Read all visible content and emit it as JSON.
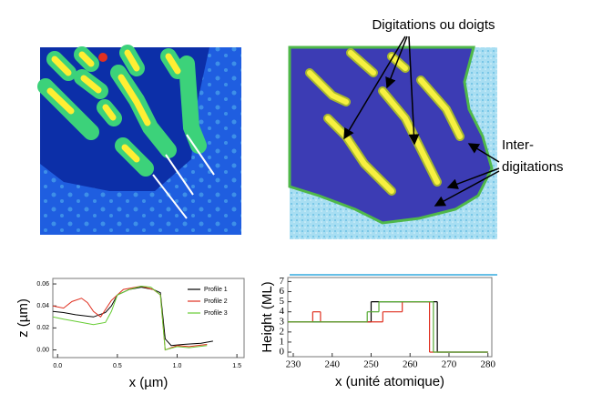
{
  "annotations": {
    "digitations": "Digitations ou doigts",
    "inter": [
      "Inter-",
      "digitations"
    ]
  },
  "chart_data": [
    {
      "type": "line",
      "xlabel": "x (µm)",
      "ylabel": "z (µm)",
      "xlim": [
        -0.04,
        1.56
      ],
      "ylim": [
        -0.007,
        0.065
      ],
      "xticks": [
        {
          "value": 0,
          "label": "0.0"
        },
        0.5,
        {
          "value": 1,
          "label": "1.0"
        },
        1.5
      ],
      "yticks": [
        {
          "value": 0,
          "label": "0.00"
        },
        {
          "value": 0.02,
          "label": "0.02"
        },
        {
          "value": 0.04,
          "label": "0.04"
        },
        {
          "value": 0.06,
          "label": "0.06"
        }
      ],
      "legend": "upper right",
      "series": [
        {
          "name": "Profile 1",
          "color": "#000000",
          "x": [
            -0.04,
            0.05,
            0.15,
            0.3,
            0.4,
            0.45,
            0.5,
            0.6,
            0.7,
            0.8,
            0.86,
            0.9,
            0.95,
            1.05,
            1.2,
            1.3
          ],
          "values": [
            0.035,
            0.034,
            0.032,
            0.03,
            0.034,
            0.04,
            0.05,
            0.055,
            0.057,
            0.055,
            0.052,
            0.01,
            0.004,
            0.005,
            0.006,
            0.008
          ]
        },
        {
          "name": "Profile 2",
          "color": "#e03020",
          "x": [
            -0.04,
            0.05,
            0.12,
            0.2,
            0.25,
            0.3,
            0.36,
            0.45,
            0.55,
            0.7,
            0.8,
            0.86,
            0.9,
            1.0,
            1.1,
            1.25
          ],
          "values": [
            0.04,
            0.038,
            0.044,
            0.047,
            0.043,
            0.035,
            0.03,
            0.045,
            0.055,
            0.058,
            0.055,
            0.05,
            0.0,
            0.004,
            0.003,
            0.005
          ]
        },
        {
          "name": "Profile 3",
          "color": "#66cc33",
          "x": [
            -0.04,
            0.05,
            0.15,
            0.3,
            0.4,
            0.45,
            0.5,
            0.6,
            0.7,
            0.78,
            0.86,
            0.9,
            1.0,
            1.1,
            1.25
          ],
          "values": [
            0.03,
            0.028,
            0.026,
            0.023,
            0.025,
            0.035,
            0.05,
            0.055,
            0.058,
            0.057,
            0.05,
            0.0,
            0.003,
            0.002,
            0.004
          ]
        }
      ]
    },
    {
      "type": "step",
      "xlabel": "x (unité atomique)",
      "ylabel": "Height (ML)",
      "xlim": [
        228.6,
        281
      ],
      "ylim": [
        -0.45,
        7.4
      ],
      "xticks": [
        230,
        240,
        250,
        260,
        270,
        280
      ],
      "yticks": [
        0,
        1,
        2,
        3,
        4,
        5,
        6,
        7
      ],
      "series": [
        {
          "name": "black",
          "color": "#000000",
          "x": [
            228.6,
            250,
            267,
            280
          ],
          "values": [
            3,
            5,
            0,
            0
          ]
        },
        {
          "name": "red",
          "color": "#e03020",
          "x": [
            228.6,
            235,
            237,
            253,
            258,
            265,
            280
          ],
          "values": [
            3,
            4,
            3,
            4,
            5,
            0,
            0
          ]
        },
        {
          "name": "green",
          "color": "#55aa33",
          "x": [
            228.6,
            249,
            252,
            266,
            280
          ],
          "values": [
            3,
            4,
            5,
            0,
            0
          ]
        }
      ]
    }
  ]
}
